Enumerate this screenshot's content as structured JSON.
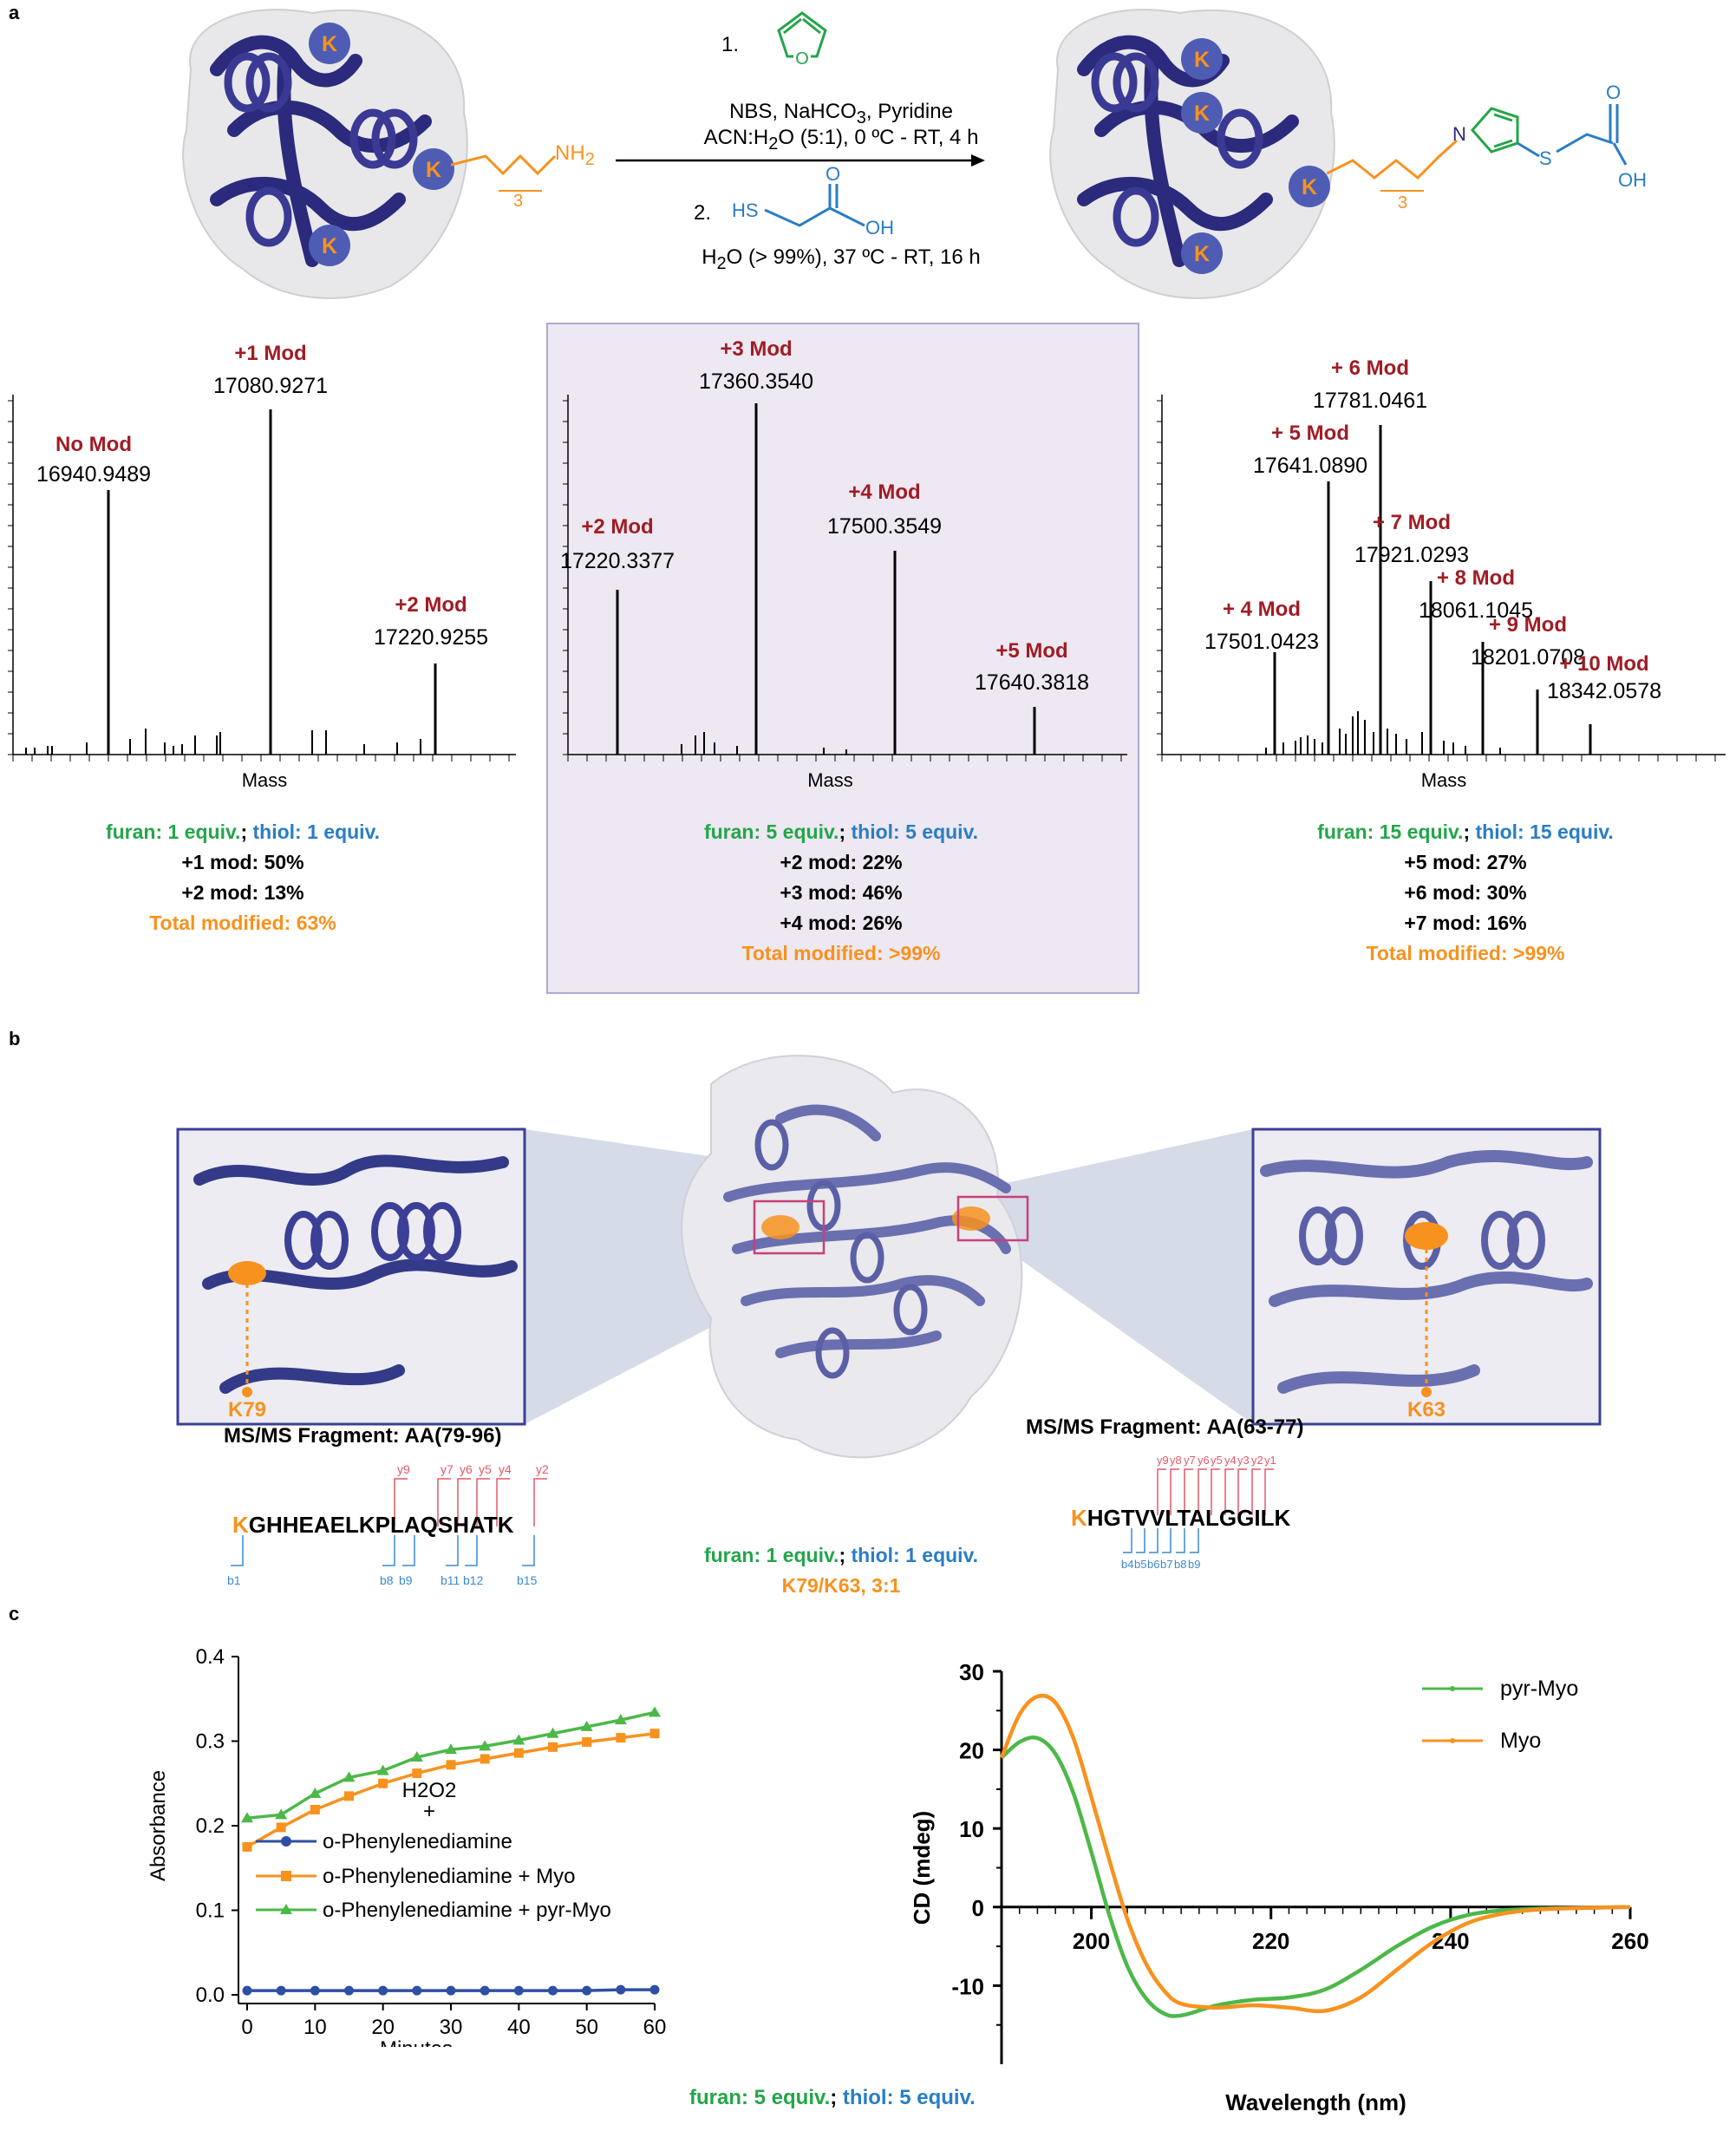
{
  "panels": {
    "a": "a",
    "b": "b",
    "c": "c"
  },
  "panel_a": {
    "protein_k_label": "K",
    "amine": {
      "sub": "3",
      "nh": "NH",
      "nh_sub": "2"
    },
    "product_sub": "3",
    "pyrrole_n": "N",
    "sulfur": "S",
    "oh": "OH",
    "oxygen": "O",
    "step1_number": "1.",
    "step1_line1": "NBS, NaHCO",
    "step1_line1_sub": "3",
    "step1_line1_end": ", Pyridine",
    "step1_line2_a": "ACN:H",
    "step1_line2_sub": "2",
    "step1_line2_b": "O (5:1), 0 ºC - RT, 4 h",
    "step2_number": "2.",
    "step2_hs": "HS",
    "step2_oh": "OH",
    "step2_o": "O",
    "step2_line_a": "H",
    "step2_line_sub": "2",
    "step2_line_b": "O (> 99%), 37 ºC - RT, 16 h",
    "xlabel": "Mass",
    "spectra": [
      {
        "peaks": [
          {
            "label": "No Mod",
            "mass": "16940.9489"
          },
          {
            "label": "+1 Mod",
            "mass": "17080.9271"
          },
          {
            "label": "+2 Mod",
            "mass": "17220.9255"
          }
        ]
      },
      {
        "peaks": [
          {
            "label": "+2 Mod",
            "mass": "17220.3377"
          },
          {
            "label": "+3 Mod",
            "mass": "17360.3540"
          },
          {
            "label": "+4 Mod",
            "mass": "17500.3549"
          },
          {
            "label": "+5 Mod",
            "mass": "17640.3818"
          }
        ]
      },
      {
        "peaks": [
          {
            "label": "+ 4 Mod",
            "mass": "17501.0423"
          },
          {
            "label": "+ 5 Mod",
            "mass": "17641.0890"
          },
          {
            "label": "+ 6 Mod",
            "mass": "17781.0461"
          },
          {
            "label": "+ 7 Mod",
            "mass": "17921.0293"
          },
          {
            "label": "+ 8 Mod",
            "mass": "18061.1045"
          },
          {
            "label": "+ 9 Mod",
            "mass": "18201.0708"
          },
          {
            "label": "+ 10 Mod",
            "mass": "18342.0578"
          }
        ]
      }
    ],
    "conditions": [
      {
        "furan": "furan: 1 equiv.",
        "sep": ";",
        "thiol": "thiol: 1 equiv.",
        "lines": [
          "+1 mod: 50%",
          "+2 mod: 13%"
        ],
        "total": "Total modified: 63%"
      },
      {
        "furan": "furan: 5 equiv.",
        "sep": ";",
        "thiol": "thiol: 5 equiv.",
        "lines": [
          "+2 mod: 22%",
          "+3 mod: 46%",
          "+4 mod: 26%"
        ],
        "total": "Total modified: >99%"
      },
      {
        "furan": "furan: 15 equiv.",
        "sep": ";",
        "thiol": "thiol: 15 equiv.",
        "lines": [
          "+5 mod: 27%",
          "+6 mod: 30%",
          "+7 mod: 16%"
        ],
        "total": "Total modified: >99%"
      }
    ]
  },
  "panel_b": {
    "left_site": "K79",
    "right_site": "K63",
    "left_fragment_title": "MS/MS Fragment: AA(79-96)",
    "right_fragment_title": "MS/MS Fragment: AA(63-77)",
    "left_seq_k": "K",
    "left_seq_rest": "GHHEAELKPLAQSHATK",
    "right_seq_k": "K",
    "right_seq_rest": "HGTVVLTALGGILK",
    "left_y_ions": [
      "y9",
      "y7",
      "y6",
      "y5",
      "y4",
      "y2"
    ],
    "left_b_ions": [
      "b1",
      "b8",
      "b9",
      "b11",
      "b12",
      "b15"
    ],
    "right_y_ions": [
      "y9",
      "y8",
      "y7",
      "y6",
      "y5",
      "y4",
      "y3",
      "y2",
      "y1"
    ],
    "right_b_ions": [
      "b4",
      "b5",
      "b6",
      "b7",
      "b8",
      "b9"
    ],
    "furan": "furan: 1 equiv.",
    "sep": ";",
    "thiol": "thiol: 1 equiv.",
    "ratio": "K79/K63, 3:1"
  },
  "panel_c": {
    "left_chart": {
      "ylabel": "Absorbance",
      "xlabel": "Minutes",
      "legend_header": "H2O2",
      "legend_plus": "+",
      "legend_series": [
        "o-Phenylenediamine",
        "o-Phenylenediamine + Myo",
        "o-Phenylenediamine + pyr-Myo"
      ]
    },
    "right_chart": {
      "ylabel": "CD (mdeg)",
      "xlabel": "Wavelength (nm)",
      "legend_series": [
        "pyr-Myo",
        "Myo"
      ]
    },
    "footer_furan": "furan: 5 equiv.",
    "footer_sep": ";",
    "footer_thiol": "thiol: 5 equiv."
  },
  "chart_data": [
    {
      "type": "line",
      "title": "",
      "xlabel": "Minutes",
      "ylabel": "Absorbance",
      "xlim": [
        0,
        60
      ],
      "ylim": [
        0,
        0.4
      ],
      "xticks": [
        "0",
        "10",
        "20",
        "30",
        "40",
        "50",
        "60"
      ],
      "yticks": [
        "0.0",
        "0.1",
        "0.2",
        "0.3",
        "0.4"
      ],
      "x": [
        0,
        5,
        10,
        15,
        20,
        25,
        30,
        35,
        40,
        45,
        50,
        55,
        60
      ],
      "series": [
        {
          "name": "o-Phenylenediamine",
          "color": "#2e4fa3",
          "marker": "circle",
          "values": [
            0.005,
            0.005,
            0.005,
            0.005,
            0.005,
            0.005,
            0.005,
            0.005,
            0.005,
            0.005,
            0.005,
            0.006,
            0.006
          ]
        },
        {
          "name": "o-Phenylenediamine + Myo",
          "color": "#f7921e",
          "marker": "square",
          "values": [
            0.175,
            0.198,
            0.219,
            0.235,
            0.25,
            0.262,
            0.272,
            0.279,
            0.286,
            0.293,
            0.299,
            0.304,
            0.309
          ]
        },
        {
          "name": "o-Phenylenediamine + pyr-Myo",
          "color": "#4cb848",
          "marker": "triangle",
          "values": [
            0.209,
            0.213,
            0.238,
            0.257,
            0.265,
            0.281,
            0.29,
            0.294,
            0.301,
            0.309,
            0.317,
            0.325,
            0.334
          ]
        }
      ]
    },
    {
      "type": "line",
      "title": "",
      "xlabel": "Wavelength (nm)",
      "ylabel": "CD (mdeg)",
      "xlim": [
        190,
        260
      ],
      "ylim": [
        -20,
        30
      ],
      "xticks": [
        "200",
        "220",
        "240",
        "260"
      ],
      "yticks": [
        "-10",
        "0",
        "10",
        "20",
        "30"
      ],
      "series": [
        {
          "name": "pyr-Myo",
          "color": "#4cb848",
          "x": [
            190,
            192,
            194,
            196,
            198,
            200,
            202,
            204,
            206,
            208,
            210,
            214,
            218,
            222,
            226,
            230,
            234,
            238,
            242,
            246,
            250,
            255,
            260
          ],
          "values": [
            19,
            21,
            21.5,
            19.5,
            14.5,
            7,
            -1,
            -7.5,
            -11.5,
            -13.5,
            -13.8,
            -12.5,
            -11.8,
            -11.5,
            -10.5,
            -8,
            -5,
            -2.5,
            -1,
            -0.4,
            -0.2,
            -0.1,
            0
          ]
        },
        {
          "name": "Myo",
          "color": "#f7921e",
          "x": [
            190,
            192,
            194,
            196,
            198,
            200,
            202,
            204,
            206,
            208,
            210,
            214,
            218,
            222,
            226,
            230,
            234,
            238,
            242,
            246,
            250,
            255,
            260
          ],
          "values": [
            19,
            24.5,
            26.8,
            26,
            21.5,
            14,
            6,
            -1.5,
            -7,
            -10.5,
            -12.3,
            -12.8,
            -12.5,
            -12.8,
            -13.2,
            -11.5,
            -8,
            -4.5,
            -2,
            -0.8,
            -0.3,
            -0.1,
            0
          ]
        }
      ]
    }
  ]
}
